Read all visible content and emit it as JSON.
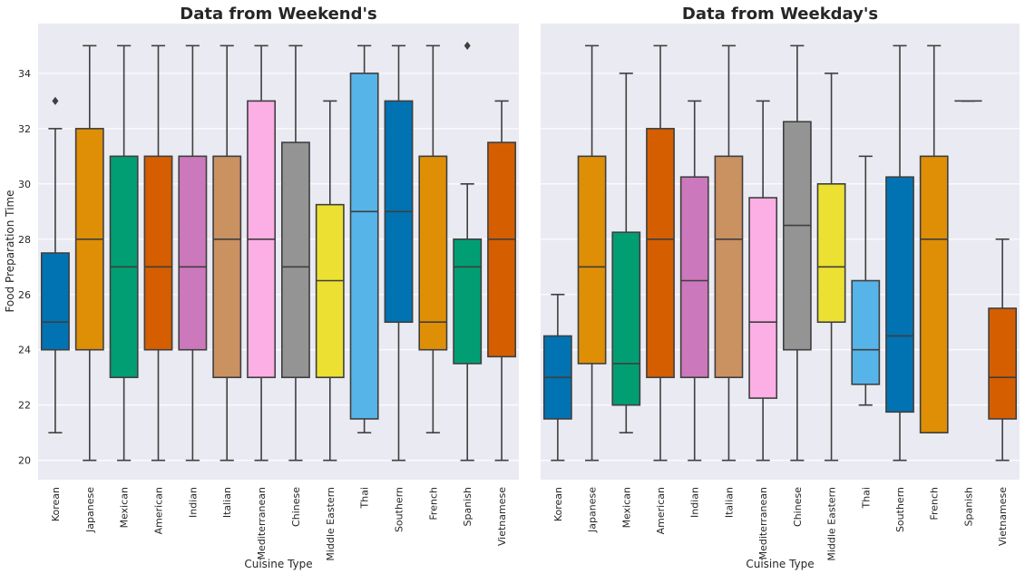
{
  "chart_data": [
    {
      "type": "box",
      "title": "Data from Weekend's",
      "xlabel": "Cuisine Type",
      "ylabel": "Food Preparation Time",
      "ylim": [
        19.3,
        35.8
      ],
      "yticks": [
        20,
        22,
        24,
        26,
        28,
        30,
        32,
        34
      ],
      "grid": true,
      "categories": [
        "Korean",
        "Japanese",
        "Mexican",
        "American",
        "Indian",
        "Italian",
        "Mediterranean",
        "Chinese",
        "Middle Eastern",
        "Thai",
        "Southern",
        "French",
        "Spanish",
        "Vietnamese"
      ],
      "boxes": [
        {
          "whislo": 21,
          "q1": 24,
          "med": 25,
          "q3": 27.5,
          "whishi": 32,
          "fliers": [
            33
          ]
        },
        {
          "whislo": 20,
          "q1": 24,
          "med": 28,
          "q3": 32,
          "whishi": 35,
          "fliers": []
        },
        {
          "whislo": 20,
          "q1": 23,
          "med": 27,
          "q3": 31,
          "whishi": 35,
          "fliers": []
        },
        {
          "whislo": 20,
          "q1": 24,
          "med": 27,
          "q3": 31,
          "whishi": 35,
          "fliers": []
        },
        {
          "whislo": 20,
          "q1": 24,
          "med": 27,
          "q3": 31,
          "whishi": 35,
          "fliers": []
        },
        {
          "whislo": 20,
          "q1": 23,
          "med": 28,
          "q3": 31,
          "whishi": 35,
          "fliers": []
        },
        {
          "whislo": 20,
          "q1": 23,
          "med": 28,
          "q3": 33,
          "whishi": 35,
          "fliers": []
        },
        {
          "whislo": 20,
          "q1": 23,
          "med": 27,
          "q3": 31.5,
          "whishi": 35,
          "fliers": []
        },
        {
          "whislo": 20,
          "q1": 23,
          "med": 26.5,
          "q3": 29.25,
          "whishi": 33,
          "fliers": []
        },
        {
          "whislo": 21,
          "q1": 21.5,
          "med": 29,
          "q3": 34,
          "whishi": 35,
          "fliers": []
        },
        {
          "whislo": 20,
          "q1": 25,
          "med": 29,
          "q3": 33,
          "whishi": 35,
          "fliers": []
        },
        {
          "whislo": 21,
          "q1": 24,
          "med": 25,
          "q3": 31,
          "whishi": 35,
          "fliers": []
        },
        {
          "whislo": 20,
          "q1": 23.5,
          "med": 27,
          "q3": 28,
          "whishi": 30,
          "fliers": [
            35
          ]
        },
        {
          "whislo": 20,
          "q1": 23.75,
          "med": 28,
          "q3": 31.5,
          "whishi": 33,
          "fliers": []
        }
      ]
    },
    {
      "type": "box",
      "title": "Data from Weekday's",
      "xlabel": "Cuisine Type",
      "ylabel": "",
      "ylim": [
        19.3,
        35.8
      ],
      "yticks": [
        20,
        22,
        24,
        26,
        28,
        30,
        32,
        34
      ],
      "grid": true,
      "categories": [
        "Korean",
        "Japanese",
        "Mexican",
        "American",
        "Indian",
        "Italian",
        "Mediterranean",
        "Chinese",
        "Middle Eastern",
        "Thai",
        "Southern",
        "French",
        "Spanish",
        "Vietnamese"
      ],
      "boxes": [
        {
          "whislo": 20,
          "q1": 21.5,
          "med": 23,
          "q3": 24.5,
          "whishi": 26,
          "fliers": []
        },
        {
          "whislo": 20,
          "q1": 23.5,
          "med": 27,
          "q3": 31,
          "whishi": 35,
          "fliers": []
        },
        {
          "whislo": 21,
          "q1": 22,
          "med": 23.5,
          "q3": 28.25,
          "whishi": 34,
          "fliers": []
        },
        {
          "whislo": 20,
          "q1": 23,
          "med": 28,
          "q3": 32,
          "whishi": 35,
          "fliers": []
        },
        {
          "whislo": 20,
          "q1": 23,
          "med": 26.5,
          "q3": 30.25,
          "whishi": 33,
          "fliers": []
        },
        {
          "whislo": 20,
          "q1": 23,
          "med": 28,
          "q3": 31,
          "whishi": 35,
          "fliers": []
        },
        {
          "whislo": 20,
          "q1": 22.25,
          "med": 25,
          "q3": 29.5,
          "whishi": 33,
          "fliers": []
        },
        {
          "whislo": 20,
          "q1": 24,
          "med": 28.5,
          "q3": 32.25,
          "whishi": 35,
          "fliers": []
        },
        {
          "whislo": 20,
          "q1": 25,
          "med": 27,
          "q3": 30,
          "whishi": 34,
          "fliers": []
        },
        {
          "whislo": 22,
          "q1": 22.75,
          "med": 24,
          "q3": 26.5,
          "whishi": 31,
          "fliers": []
        },
        {
          "whislo": 20,
          "q1": 21.75,
          "med": 24.5,
          "q3": 30.25,
          "whishi": 35,
          "fliers": []
        },
        {
          "whislo": 21,
          "q1": 21,
          "med": 28,
          "q3": 31,
          "whishi": 35,
          "fliers": []
        },
        {
          "whislo": 33,
          "q1": 33,
          "med": 33,
          "q3": 33,
          "whishi": 33,
          "fliers": []
        },
        {
          "whislo": 20,
          "q1": 21.5,
          "med": 23,
          "q3": 25.5,
          "whishi": 28,
          "fliers": []
        }
      ]
    }
  ],
  "style": {
    "background": "#eaeaf2",
    "grid_color": "#ffffff",
    "line_color": "#3f3f3f",
    "palette": [
      "#0173b2",
      "#de8f05",
      "#029e73",
      "#d55e00",
      "#cc78bc",
      "#ca9161",
      "#fbafe4",
      "#949494",
      "#ece133",
      "#56b4e9",
      "#0173b2",
      "#de8f05",
      "#029e73",
      "#d55e00"
    ]
  }
}
